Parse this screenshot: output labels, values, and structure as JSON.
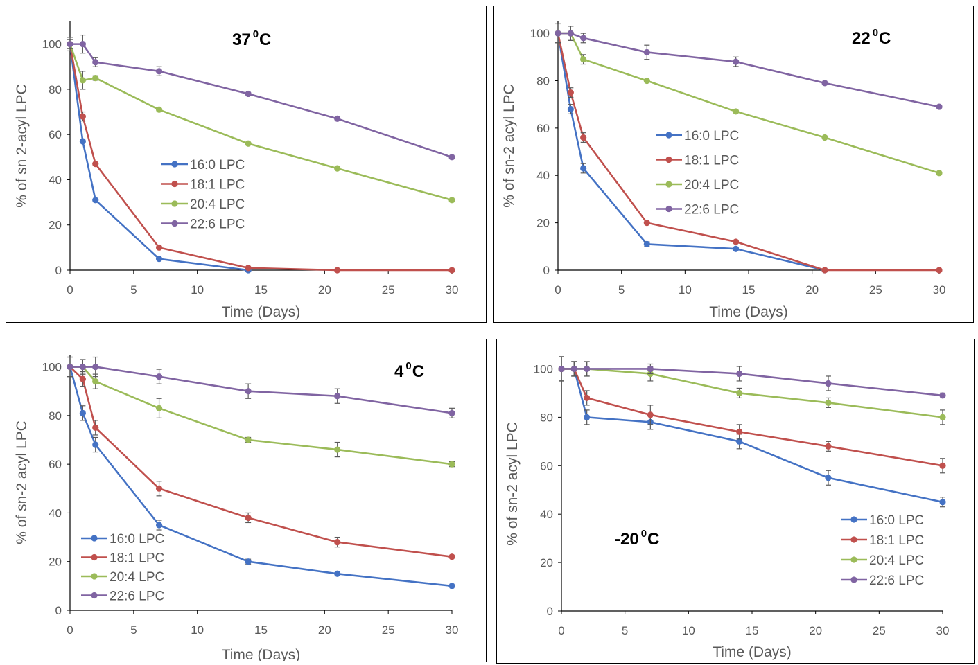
{
  "chart_data": [
    {
      "type": "line",
      "title": "37",
      "title_sup": "0",
      "title_suffix": "C",
      "xlabel": "Time (Days)",
      "ylabel": "% of sn 2-acyl LPC",
      "xlim": [
        0,
        30
      ],
      "ylim": [
        0,
        110
      ],
      "xticks": [
        0,
        5,
        10,
        15,
        20,
        25,
        30
      ],
      "yticks": [
        0,
        20,
        40,
        60,
        80,
        100
      ],
      "grid": false,
      "legend_position": "center",
      "series": [
        {
          "name": "16:0 LPC",
          "color": "#4472C4",
          "x": [
            0,
            1,
            2,
            7,
            14
          ],
          "y": [
            100,
            57,
            31,
            5,
            0
          ],
          "err": [
            0,
            0,
            0,
            0,
            0
          ]
        },
        {
          "name": "18:1 LPC",
          "color": "#C0504D",
          "x": [
            0,
            1,
            2,
            7,
            14,
            21,
            30
          ],
          "y": [
            100,
            68,
            47,
            10,
            1,
            0,
            0
          ],
          "err": [
            0,
            2,
            0,
            0,
            0,
            0,
            0
          ]
        },
        {
          "name": "20:4 LPC",
          "color": "#9BBB59",
          "x": [
            0,
            1,
            2,
            7,
            14,
            21,
            30
          ],
          "y": [
            100,
            84,
            85,
            71,
            56,
            45,
            31
          ],
          "err": [
            2,
            4,
            1,
            0,
            0,
            0,
            0
          ]
        },
        {
          "name": "22:6 LPC",
          "color": "#8064A2",
          "x": [
            0,
            1,
            2,
            7,
            14,
            21,
            30
          ],
          "y": [
            100,
            100,
            92,
            88,
            78,
            67,
            50
          ],
          "err": [
            3,
            4,
            2,
            2,
            0,
            0,
            0
          ]
        }
      ]
    },
    {
      "type": "line",
      "title": "22",
      "title_sup": "0",
      "title_suffix": "C",
      "xlabel": "Time (Days)",
      "ylabel": "% of sn-2 acyl LPC",
      "xlim": [
        0,
        30
      ],
      "ylim": [
        0,
        105
      ],
      "xticks": [
        0,
        5,
        10,
        15,
        20,
        25,
        30
      ],
      "yticks": [
        0,
        20,
        40,
        60,
        80,
        100
      ],
      "grid": false,
      "legend_position": "center",
      "series": [
        {
          "name": "16:0 LPC",
          "color": "#4472C4",
          "x": [
            0,
            1,
            2,
            7,
            14,
            21
          ],
          "y": [
            100,
            68,
            43,
            11,
            9,
            0
          ],
          "err": [
            0,
            2,
            2,
            1,
            0,
            0
          ]
        },
        {
          "name": "18:1 LPC",
          "color": "#C0504D",
          "x": [
            0,
            1,
            2,
            7,
            14,
            21,
            30
          ],
          "y": [
            100,
            75,
            56,
            20,
            12,
            0,
            0
          ],
          "err": [
            0,
            2,
            2,
            0,
            0,
            0,
            0
          ]
        },
        {
          "name": "20:4 LPC",
          "color": "#9BBB59",
          "x": [
            0,
            1,
            2,
            7,
            14,
            21,
            30
          ],
          "y": [
            100,
            100,
            89,
            80,
            67,
            56,
            41
          ],
          "err": [
            4,
            3,
            2,
            0,
            0,
            0,
            0
          ]
        },
        {
          "name": "22:6 LPC",
          "color": "#8064A2",
          "x": [
            0,
            1,
            2,
            7,
            14,
            21,
            30
          ],
          "y": [
            100,
            100,
            98,
            92,
            88,
            79,
            69
          ],
          "err": [
            4,
            3,
            2,
            3,
            2,
            0,
            0
          ]
        }
      ]
    },
    {
      "type": "line",
      "title": "4",
      "title_sup": "0",
      "title_suffix": "C",
      "xlabel": "Time (Days)",
      "ylabel": "% of sn-2 acyl LPC",
      "xlim": [
        0,
        30
      ],
      "ylim": [
        0,
        105
      ],
      "xticks": [
        0,
        5,
        10,
        15,
        20,
        25,
        30
      ],
      "yticks": [
        0,
        20,
        40,
        60,
        80,
        100
      ],
      "grid": false,
      "legend_position": "bottom-left",
      "series": [
        {
          "name": "16:0 LPC",
          "color": "#4472C4",
          "x": [
            0,
            1,
            2,
            7,
            14,
            21,
            30
          ],
          "y": [
            100,
            81,
            68,
            35,
            20,
            15,
            10
          ],
          "err": [
            0,
            3,
            3,
            2,
            1,
            0,
            0
          ]
        },
        {
          "name": "18:1 LPC",
          "color": "#C0504D",
          "x": [
            0,
            1,
            2,
            7,
            14,
            21,
            30
          ],
          "y": [
            100,
            95,
            75,
            50,
            38,
            28,
            22
          ],
          "err": [
            0,
            3,
            3,
            3,
            2,
            2,
            0
          ]
        },
        {
          "name": "20:4 LPC",
          "color": "#9BBB59",
          "x": [
            0,
            1,
            2,
            7,
            14,
            21,
            30
          ],
          "y": [
            100,
            100,
            94,
            83,
            70,
            66,
            60
          ],
          "err": [
            4,
            3,
            3,
            4,
            1,
            3,
            1
          ]
        },
        {
          "name": "22:6 LPC",
          "color": "#8064A2",
          "x": [
            0,
            1,
            2,
            7,
            14,
            21,
            30
          ],
          "y": [
            100,
            100,
            100,
            96,
            90,
            88,
            81
          ],
          "err": [
            4,
            3,
            4,
            3,
            3,
            3,
            2
          ]
        }
      ]
    },
    {
      "type": "line",
      "title": "-20",
      "title_sup": "0",
      "title_suffix": "C",
      "xlabel": "Time (Days)",
      "ylabel": "% of sn-2 acyl LPC",
      "xlim": [
        0,
        30
      ],
      "ylim": [
        0,
        105
      ],
      "xticks": [
        0,
        5,
        10,
        15,
        20,
        25,
        30
      ],
      "yticks": [
        0,
        20,
        40,
        60,
        80,
        100
      ],
      "grid": false,
      "legend_position": "bottom-right",
      "series": [
        {
          "name": "16:0 LPC",
          "color": "#4472C4",
          "x": [
            0,
            1,
            2,
            7,
            14,
            21,
            30
          ],
          "y": [
            100,
            100,
            80,
            78,
            70,
            55,
            45
          ],
          "err": [
            5,
            3,
            3,
            3,
            3,
            3,
            2
          ]
        },
        {
          "name": "18:1 LPC",
          "color": "#C0504D",
          "x": [
            0,
            1,
            2,
            7,
            14,
            21,
            30
          ],
          "y": [
            100,
            100,
            88,
            81,
            74,
            68,
            60
          ],
          "err": [
            5,
            3,
            3,
            4,
            3,
            2,
            3
          ]
        },
        {
          "name": "20:4 LPC",
          "color": "#9BBB59",
          "x": [
            0,
            1,
            2,
            7,
            14,
            21,
            30
          ],
          "y": [
            100,
            100,
            100,
            98,
            90,
            86,
            80
          ],
          "err": [
            5,
            3,
            3,
            3,
            2,
            2,
            3
          ]
        },
        {
          "name": "22:6 LPC",
          "color": "#8064A2",
          "x": [
            0,
            1,
            2,
            7,
            14,
            21,
            30
          ],
          "y": [
            100,
            100,
            100,
            100,
            98,
            94,
            89
          ],
          "err": [
            5,
            3,
            3,
            2,
            3,
            3,
            1
          ]
        }
      ]
    }
  ]
}
